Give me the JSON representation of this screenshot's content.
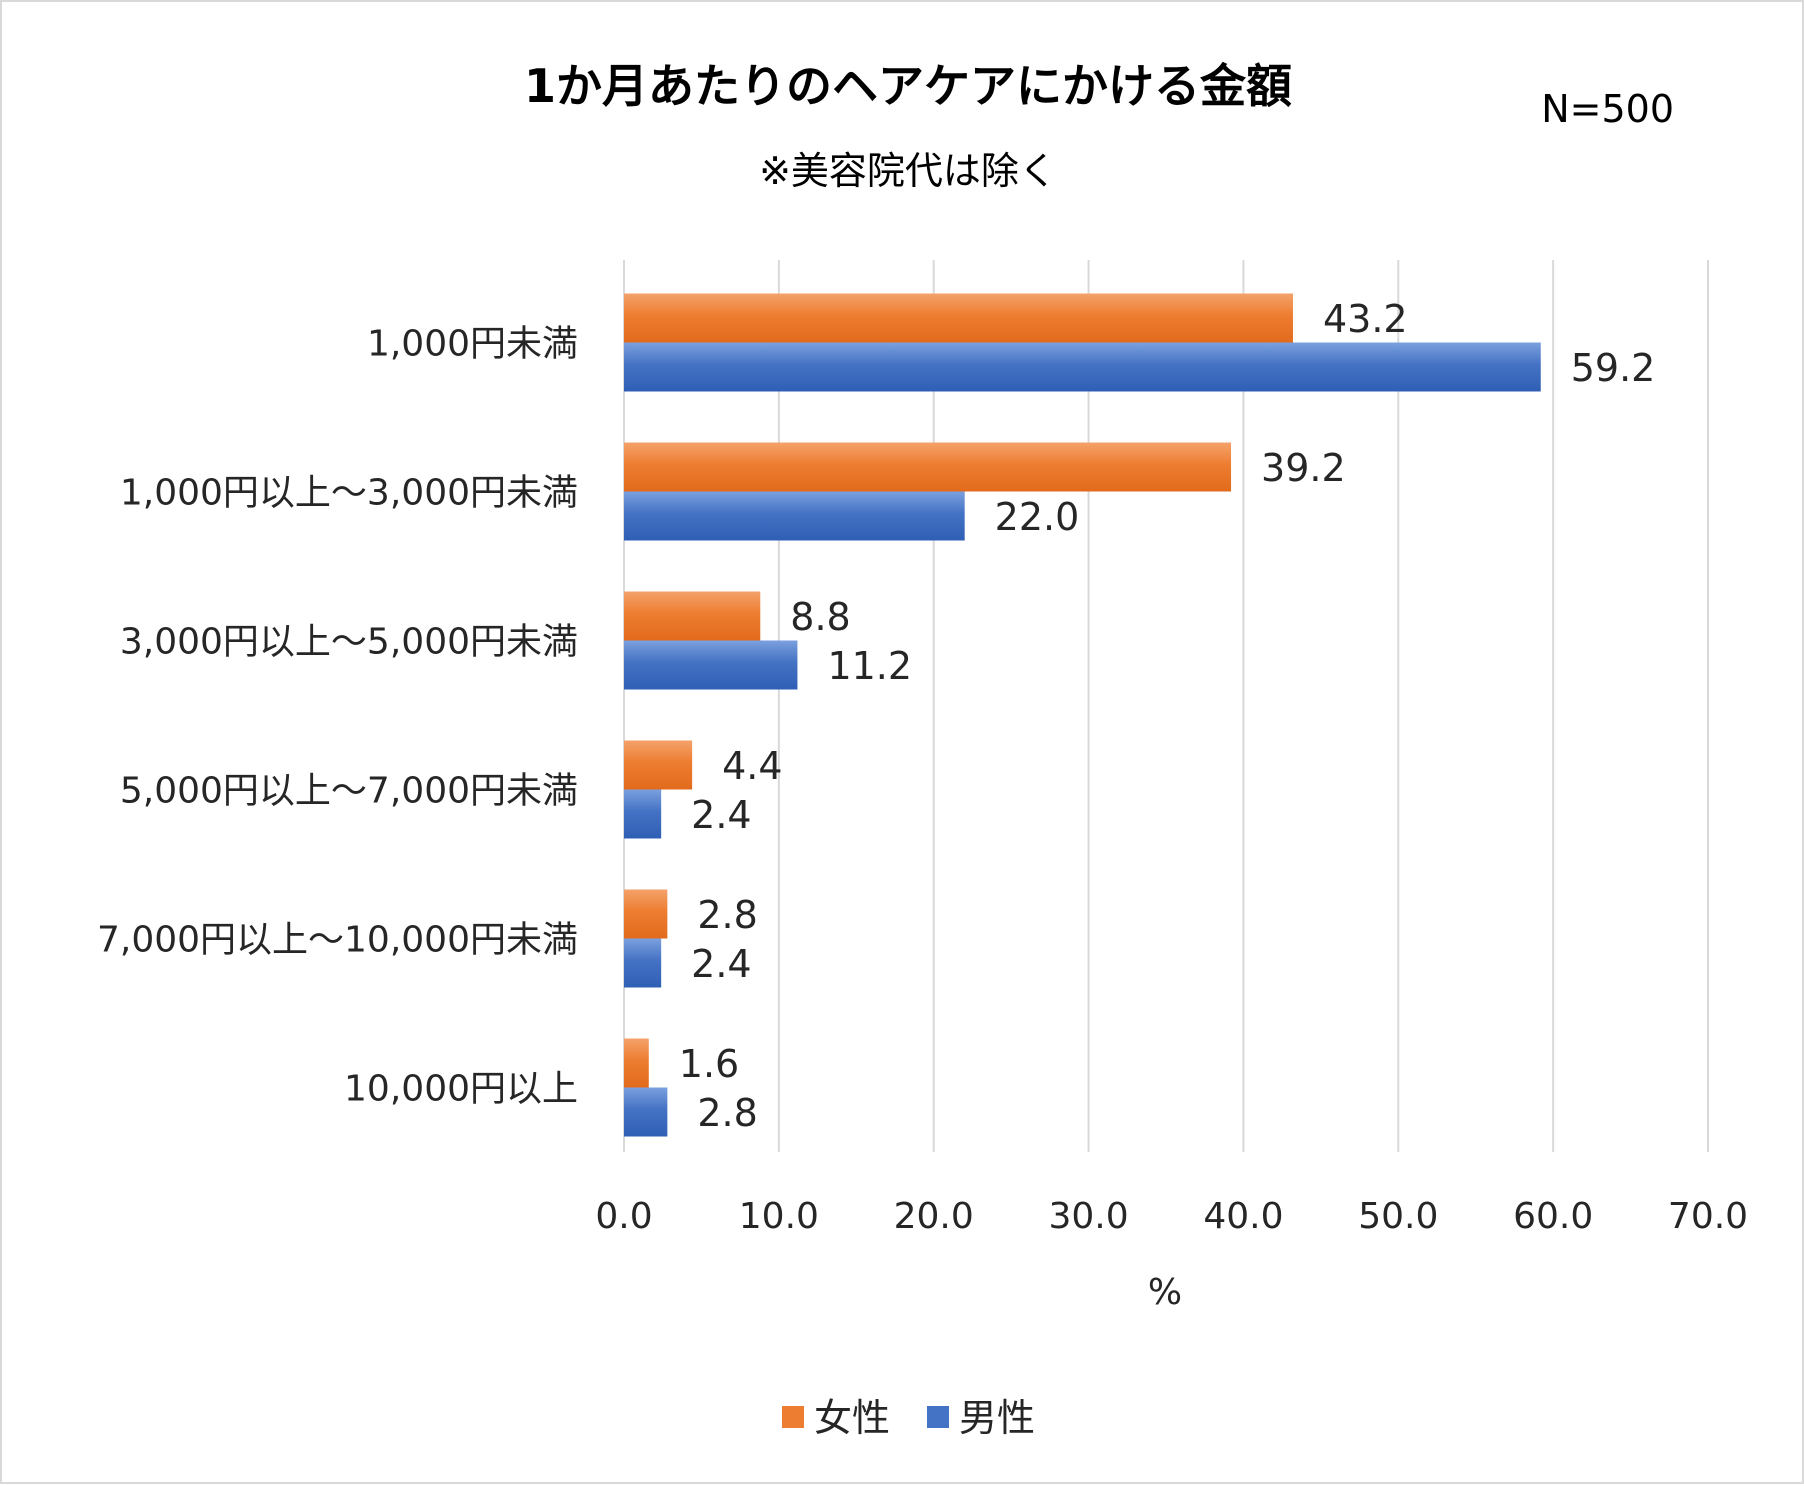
{
  "chart_data": {
    "type": "bar",
    "orientation": "horizontal",
    "title": "1か月あたりのヘアケアにかける金額",
    "subtitle": "※美容院代は除く",
    "note": "N=500",
    "categories": [
      "1,000円未満",
      "1,000円以上～3,000円未満",
      "3,000円以上～5,000円未満",
      "5,000円以上～7,000円未満",
      "7,000円以上～10,000円未満",
      "10,000円以上"
    ],
    "series": [
      {
        "name": "女性",
        "color": "#ed7d31",
        "values": [
          43.2,
          39.2,
          8.8,
          4.4,
          2.8,
          1.6
        ]
      },
      {
        "name": "男性",
        "color": "#4472c4",
        "values": [
          59.2,
          22.0,
          11.2,
          2.4,
          2.4,
          2.8
        ]
      }
    ],
    "xlabel": "%",
    "xlim": [
      0,
      70
    ],
    "xticks": [
      "0.0",
      "10.0",
      "20.0",
      "30.0",
      "40.0",
      "50.0",
      "60.0",
      "70.0"
    ],
    "grid": true,
    "legend": "bottom"
  }
}
